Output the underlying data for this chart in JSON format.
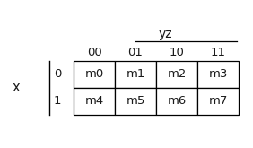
{
  "title": "yz",
  "row_label": "x",
  "col_headers": [
    "00",
    "01",
    "10",
    "11"
  ],
  "row_headers": [
    "0",
    "1"
  ],
  "cells": [
    [
      "m0",
      "m1",
      "m2",
      "m3"
    ],
    [
      "m4",
      "m5",
      "m6",
      "m7"
    ]
  ],
  "bg_color": "#ffffff",
  "cell_bg": "#ffffff",
  "font_color": "#1a1a1a",
  "line_color": "#000000",
  "title_fontsize": 10,
  "header_fontsize": 9.5,
  "cell_fontsize": 9.5,
  "label_fontsize": 10.5,
  "fig_width": 2.82,
  "fig_height": 1.65,
  "dpi": 100
}
